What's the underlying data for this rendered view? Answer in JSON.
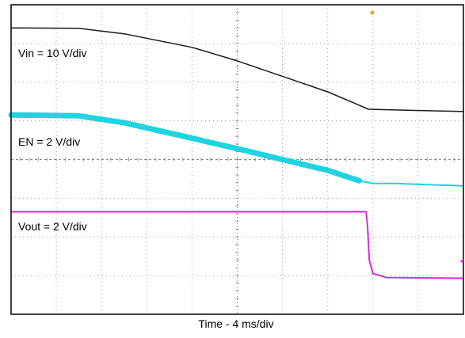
{
  "chart_data": {
    "type": "line",
    "xlabel": "Time - 4 ms/div",
    "grid": true,
    "x_divisions": 10,
    "y_divisions": 8,
    "xlim": [
      0,
      10
    ],
    "ylim": [
      0,
      8
    ],
    "series": [
      {
        "name": "Vin = 10 V/div",
        "color": "#1a1a1a",
        "points": [
          [
            0,
            7.4
          ],
          [
            1.5,
            7.39
          ],
          [
            2.5,
            7.25
          ],
          [
            4.0,
            6.9
          ],
          [
            5.0,
            6.55
          ],
          [
            6.0,
            6.15
          ],
          [
            7.0,
            5.75
          ],
          [
            7.6,
            5.45
          ],
          [
            7.9,
            5.3
          ],
          [
            8.5,
            5.28
          ],
          [
            10,
            5.24
          ]
        ]
      },
      {
        "name": "EN = 2 V/div",
        "color": "#1fd3e0",
        "points": [
          [
            0,
            5.15
          ],
          [
            1.5,
            5.13
          ],
          [
            2.5,
            4.95
          ],
          [
            4.0,
            4.55
          ],
          [
            5.0,
            4.28
          ],
          [
            6.0,
            4.0
          ],
          [
            7.0,
            3.72
          ],
          [
            7.7,
            3.45
          ],
          [
            8.0,
            3.38
          ],
          [
            8.5,
            3.38
          ],
          [
            10,
            3.32
          ]
        ]
      },
      {
        "name": "Vout = 2 V/div",
        "color": "#dd28d4",
        "points": [
          [
            0,
            2.65
          ],
          [
            7.85,
            2.65
          ],
          [
            7.88,
            2.3
          ],
          [
            7.92,
            1.4
          ],
          [
            8.0,
            1.05
          ],
          [
            8.3,
            0.95
          ],
          [
            10,
            0.93
          ]
        ]
      }
    ]
  }
}
